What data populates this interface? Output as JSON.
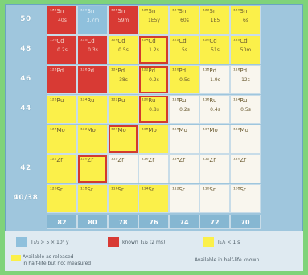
{
  "z_labels": [
    "50",
    "48",
    "46",
    "44",
    "42",
    "40/38"
  ],
  "n_labels": [
    "82",
    "80",
    "78",
    "76",
    "74",
    "72",
    "70"
  ],
  "rows": [
    [
      {
        "nuc": "¹³²Sn",
        "t": "40s",
        "c": "red"
      },
      {
        "nuc": "¹³⁰Sn",
        "t": "3.7m",
        "c": "blue"
      },
      {
        "nuc": "¹²⁸Sn",
        "t": "59m",
        "c": "red"
      },
      {
        "nuc": "¹²⁶Sn",
        "t": "1E5y",
        "c": "yellow"
      },
      {
        "nuc": "¹²⁴Sn",
        "t": "60s",
        "c": "yellow"
      },
      {
        "nuc": "¹²²Sn",
        "t": "1E5",
        "c": "yellow"
      },
      {
        "nuc": "¹²⁰Sn",
        "t": "6s",
        "c": "yellow"
      }
    ],
    [
      {
        "nuc": "¹³⁰Cd",
        "t": "0.2s",
        "c": "red"
      },
      {
        "nuc": "¹²⁸Cd",
        "t": "0.3s",
        "c": "red"
      },
      {
        "nuc": "¹²⁶Cd",
        "t": "0.5s",
        "c": "yellow"
      },
      {
        "nuc": "¹²⁴Cd",
        "t": "1.2s",
        "c": "yellow",
        "hl": true
      },
      {
        "nuc": "¹²²Cd",
        "t": "5s",
        "c": "yellow"
      },
      {
        "nuc": "¹²⁰Cd",
        "t": "51s",
        "c": "yellow"
      },
      {
        "nuc": "¹¹⁸Cd",
        "t": "50m",
        "c": "yellow"
      }
    ],
    [
      {
        "nuc": "¹²⁸Pd",
        "t": "",
        "c": "red"
      },
      {
        "nuc": "¹²⁶Pd",
        "t": "",
        "c": "red"
      },
      {
        "nuc": "¹²⁴Pd",
        "t": "38s",
        "c": "yellow"
      },
      {
        "nuc": "¹²²Pd",
        "t": "0.2s",
        "c": "yellow",
        "hl": true
      },
      {
        "nuc": "¹²⁰Pd",
        "t": "0.5s",
        "c": "yellow"
      },
      {
        "nuc": "¹¹⁸Pd",
        "t": "1.9s",
        "c": "white"
      },
      {
        "nuc": "¹¹⁶Pd",
        "t": "12s",
        "c": "white"
      }
    ],
    [
      {
        "nuc": "¹²⁶Ru",
        "t": "",
        "c": "yellow"
      },
      {
        "nuc": "¹²⁴Ru",
        "t": "",
        "c": "yellow"
      },
      {
        "nuc": "¹²²Ru",
        "t": "",
        "c": "yellow"
      },
      {
        "nuc": "¹²⁰Ru",
        "t": "0.8s",
        "c": "yellow",
        "hl": true
      },
      {
        "nuc": "¹¹⁸Ru",
        "t": "0.2s",
        "c": "white"
      },
      {
        "nuc": "¹¹⁶Ru",
        "t": "0.4s",
        "c": "white"
      },
      {
        "nuc": "¹¹⁴Ru",
        "t": "0.5s",
        "c": "white"
      }
    ],
    [
      {
        "nuc": "¹²⁴Mo",
        "t": "",
        "c": "yellow"
      },
      {
        "nuc": "¹²²Mo",
        "t": "",
        "c": "yellow"
      },
      {
        "nuc": "¹²⁰Mo",
        "t": "",
        "c": "yellow",
        "hl": true
      },
      {
        "nuc": "¹¹⁸Mo",
        "t": "",
        "c": "yellow"
      },
      {
        "nuc": "¹¹⁶Mo",
        "t": "",
        "c": "white"
      },
      {
        "nuc": "¹¹⁴Mo",
        "t": "",
        "c": "white"
      },
      {
        "nuc": "¹¹²Mo",
        "t": "",
        "c": "white"
      }
    ],
    [
      {
        "nuc": "¹²²Zr",
        "t": "",
        "c": "yellow"
      },
      {
        "nuc": "¹²⁰Zr",
        "t": "",
        "c": "yellow",
        "hl": true
      },
      {
        "nuc": "¹¹⁸Zr",
        "t": "",
        "c": "white"
      },
      {
        "nuc": "¹¹⁶Zr",
        "t": "",
        "c": "white"
      },
      {
        "nuc": "¹¹⁴Zr",
        "t": "",
        "c": "white"
      },
      {
        "nuc": "¹¹²Zr",
        "t": "",
        "c": "white"
      },
      {
        "nuc": "¹¹⁰Zr",
        "t": "",
        "c": "white"
      }
    ],
    [
      {
        "nuc": "¹²⁰Sr",
        "t": "",
        "c": "yellow"
      },
      {
        "nuc": "¹¹⁸Sr",
        "t": "",
        "c": "yellow"
      },
      {
        "nuc": "¹¹⁶Sr",
        "t": "",
        "c": "yellow"
      },
      {
        "nuc": "¹¹⁴Sr",
        "t": "",
        "c": "yellow"
      },
      {
        "nuc": "¹¹²Sr",
        "t": "",
        "c": "white"
      },
      {
        "nuc": "¹¹⁰Sr",
        "t": "",
        "c": "white"
      },
      {
        "nuc": "¹⁰⁸Sr",
        "t": "",
        "c": "white"
      }
    ]
  ],
  "legend": {
    "items": [
      {
        "color": "#8fc0dc",
        "text": "T₁/₂ > 5 × 10⁹ y"
      },
      {
        "color": "#d83a34",
        "text": "known T₁/₂ (2 ms)"
      },
      {
        "color": "#fbf04a",
        "text": "T₁/₂ < 1 s"
      }
    ],
    "note_line1": "Available as released",
    "note_line2": "in half-life but not measured",
    "note_right": "Available in half-life known"
  }
}
